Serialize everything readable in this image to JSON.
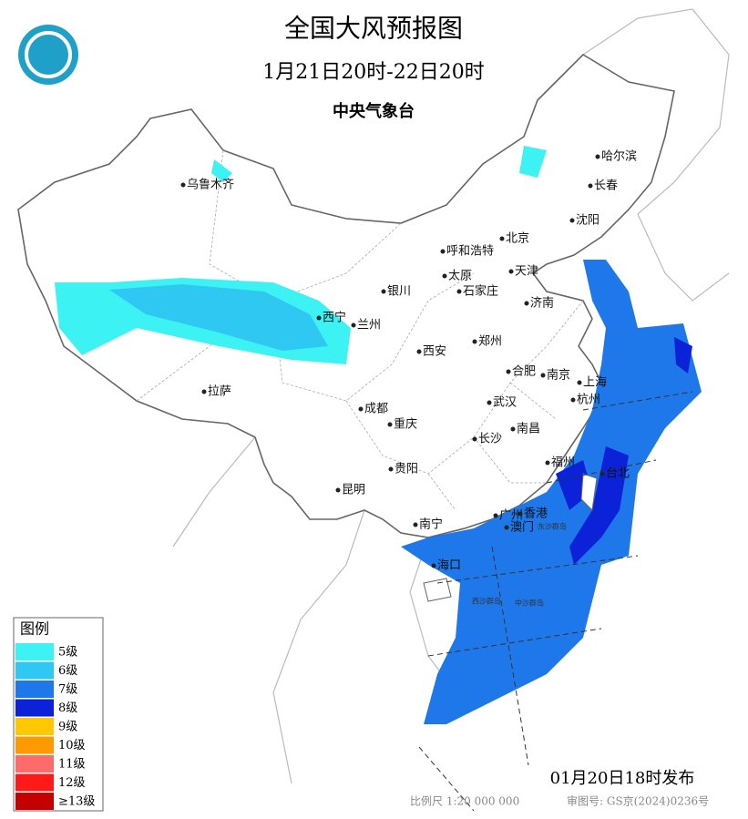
{
  "title": "全国大风预报图",
  "subtitle": "1月21日20时-22日20时",
  "issuer": "中央气象台",
  "cities": [
    "乌鲁木齐",
    "哈尔滨",
    "长春",
    "沈阳",
    "北京",
    "呼和浩特",
    "天津",
    "太原",
    "石家庄",
    "银川",
    "济南",
    "西宁",
    "兰州",
    "郑州",
    "西安",
    "合肥",
    "南京",
    "上海",
    "拉萨",
    "成都",
    "武汉",
    "杭州",
    "重庆",
    "南昌",
    "长沙",
    "福州",
    "贵阳",
    "台北",
    "昆明",
    "广州",
    "香港",
    "澳门",
    "南宁",
    "海口"
  ],
  "islands": [
    "东沙群岛",
    "西沙群岛",
    "中沙群岛"
  ],
  "legend": {
    "title": "图例",
    "items": [
      {
        "label": "5级",
        "color": "#3cf2f2"
      },
      {
        "label": "6级",
        "color": "#2fc8f2"
      },
      {
        "label": "7级",
        "color": "#1e78ea"
      },
      {
        "label": "8级",
        "color": "#0b22d8"
      },
      {
        "label": "9级",
        "color": "#ffc800"
      },
      {
        "label": "10级",
        "color": "#ff9900"
      },
      {
        "label": "11级",
        "color": "#ff6a6a"
      },
      {
        "label": "12级",
        "color": "#ff1a1a"
      },
      {
        "label": "≥13级",
        "color": "#c40000"
      }
    ]
  },
  "issued": "01月20日18时发布",
  "scale": "比例尺 1:20 000 000",
  "approval": "审图号: GS京(2024)0236号"
}
